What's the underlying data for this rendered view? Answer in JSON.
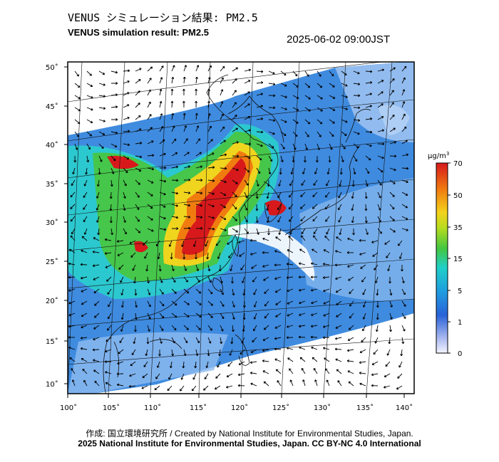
{
  "header": {
    "title_jp": "VENUS シミュレーション結果: PM2.5",
    "title_en": "VENUS simulation result: PM2.5",
    "timestamp": "2025-06-02 09:00JST"
  },
  "map": {
    "lat_ticks": [
      "50˚",
      "45˚",
      "40˚",
      "35˚",
      "30˚",
      "25˚",
      "20˚",
      "15˚",
      "10˚"
    ],
    "lon_ticks": [
      "100˚",
      "105˚",
      "110˚",
      "115˚",
      "120˚",
      "125˚",
      "130˚",
      "135˚",
      "140˚"
    ]
  },
  "colorbar": {
    "unit_base": "μg/m",
    "unit_sup": "3",
    "levels": [
      "70",
      "50",
      "35",
      "15",
      "5",
      "1",
      "0"
    ],
    "colors": [
      "#d7191c",
      "#f07c10",
      "#f3d21c",
      "#43c640",
      "#1fb7d5",
      "#2962d8",
      "#f4f4ff"
    ]
  },
  "footer": {
    "credit": "作成: 国立環境研究所 / Created by National Institute for Environmental Studies, Japan.",
    "license": "2025 National Institute for Environmental Studies, Japan. CC BY-NC 4.0 International"
  }
}
